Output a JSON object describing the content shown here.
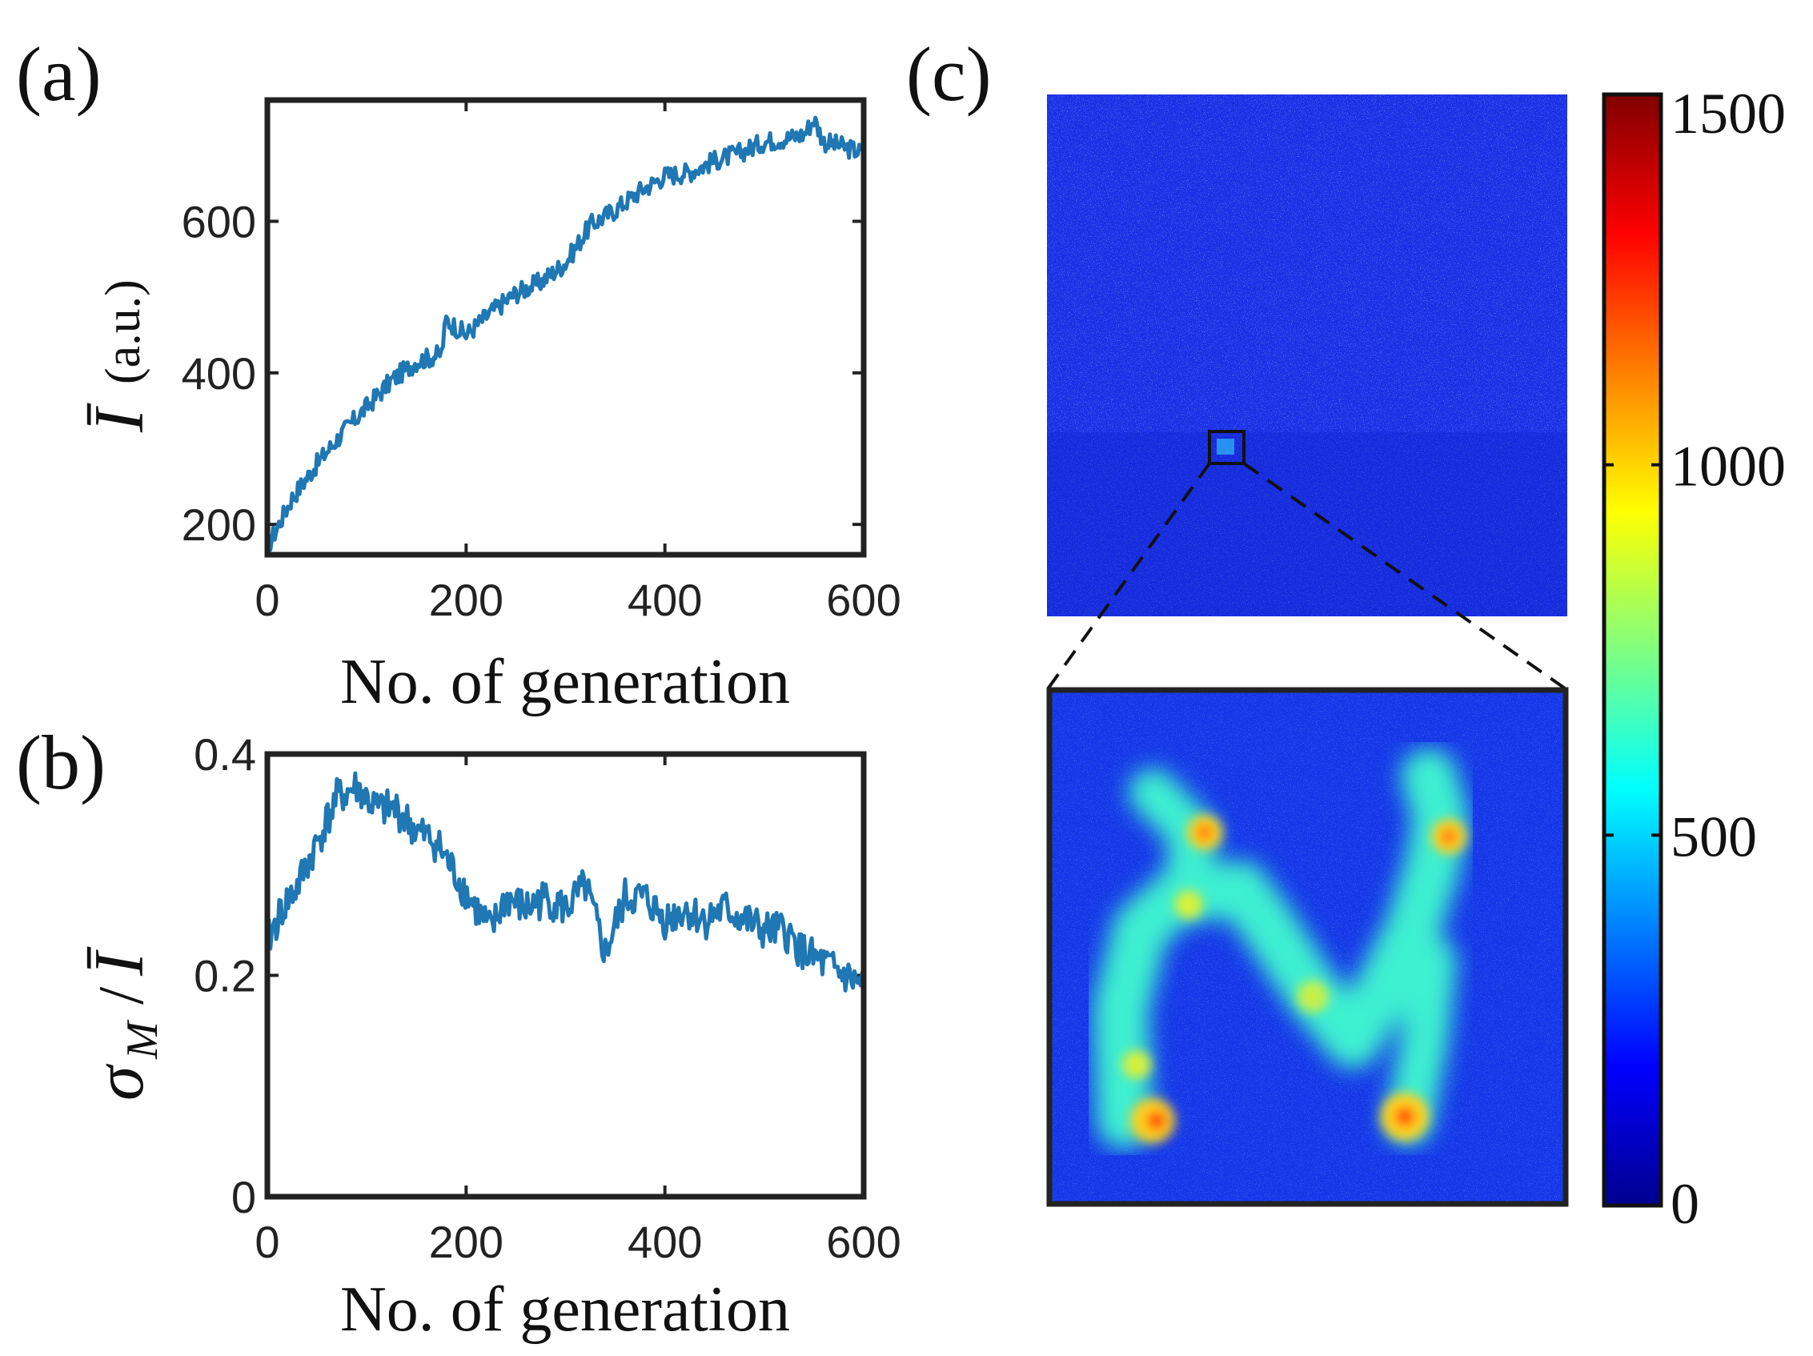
{
  "panel_labels": {
    "a": "(a)",
    "b": "(b)",
    "c": "(c)"
  },
  "colors": {
    "series": "#1f77b4",
    "axes": "#222222"
  },
  "chart_data": [
    {
      "id": "a",
      "type": "line",
      "title": "",
      "xlabel": "No. of generation",
      "ylabel_symbol": "Ī",
      "ylabel_text": "(a.u.)",
      "xlim": [
        0,
        600
      ],
      "ylim": [
        160,
        760
      ],
      "xticks": [
        0,
        200,
        400,
        600
      ],
      "yticks": [
        200,
        400,
        600
      ],
      "grid": false,
      "series": [
        {
          "name": "mean intensity",
          "x": [
            0,
            25,
            50,
            75,
            100,
            125,
            150,
            175,
            180,
            200,
            225,
            250,
            275,
            300,
            325,
            350,
            375,
            400,
            425,
            450,
            475,
            500,
            525,
            540,
            550,
            560,
            575,
            600
          ],
          "y": [
            170,
            235,
            280,
            320,
            355,
            390,
            415,
            425,
            470,
            450,
            480,
            505,
            520,
            545,
            595,
            615,
            640,
            660,
            665,
            680,
            690,
            705,
            710,
            715,
            735,
            705,
            700,
            690
          ]
        }
      ]
    },
    {
      "id": "b",
      "type": "line",
      "title": "",
      "xlabel": "No. of generation",
      "ylabel_symbol": "σ",
      "ylabel_subscript": "M",
      "ylabel_divider": "/",
      "ylabel_denominator": "Ī",
      "xlim": [
        0,
        600
      ],
      "ylim": [
        0,
        0.4
      ],
      "xticks": [
        0,
        200,
        400,
        600
      ],
      "yticks": [
        0,
        0.2,
        0.4
      ],
      "grid": false,
      "series": [
        {
          "name": "sigma_M / mean I",
          "x": [
            0,
            15,
            30,
            50,
            70,
            90,
            110,
            130,
            150,
            170,
            190,
            210,
            225,
            240,
            260,
            280,
            300,
            320,
            340,
            360,
            380,
            400,
            420,
            440,
            460,
            480,
            500,
            520,
            540,
            560,
            580,
            600
          ],
          "y": [
            0.23,
            0.26,
            0.28,
            0.32,
            0.36,
            0.37,
            0.35,
            0.35,
            0.33,
            0.32,
            0.29,
            0.26,
            0.24,
            0.27,
            0.26,
            0.27,
            0.26,
            0.28,
            0.22,
            0.27,
            0.27,
            0.25,
            0.26,
            0.25,
            0.26,
            0.25,
            0.24,
            0.24,
            0.22,
            0.21,
            0.2,
            0.19
          ]
        }
      ]
    },
    {
      "id": "c",
      "type": "heatmap",
      "title": "",
      "colorbar_ticks": [
        0,
        500,
        1000,
        1500
      ],
      "colorbar_range": [
        0,
        1500
      ],
      "colormap": "jet",
      "background_level": 130,
      "roi_level": 700
    }
  ]
}
